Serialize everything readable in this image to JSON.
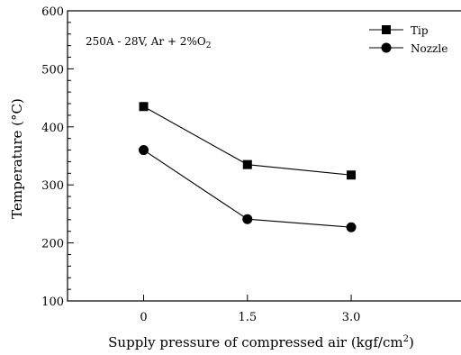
{
  "chart_data": {
    "type": "line",
    "title": "",
    "annotation": "250A - 28V, Ar + 2%O",
    "annotation_subscript": "2",
    "xlabel": "Supply pressure of compressed air (kgf/cm",
    "xlabel_superscript": "2",
    "xlabel_tail": ")",
    "ylabel": "Temperature (°C)",
    "x": [
      0,
      1.5,
      3.0
    ],
    "x_tick_labels": [
      "0",
      "1.5",
      "3.0"
    ],
    "y_ticks": [
      100,
      200,
      300,
      400,
      500,
      600
    ],
    "y_tick_labels": [
      "100",
      "200",
      "300",
      "400",
      "500",
      "600"
    ],
    "ylim": [
      100,
      600
    ],
    "xlim": [
      -1.1,
      4.6
    ],
    "grid": false,
    "legend_position": "top-right",
    "series": [
      {
        "name": "Tip",
        "marker": "square",
        "values": [
          435,
          335,
          317
        ],
        "color": "#000000"
      },
      {
        "name": "Nozzle",
        "marker": "circle",
        "values": [
          360,
          241,
          227
        ],
        "color": "#000000"
      }
    ]
  }
}
